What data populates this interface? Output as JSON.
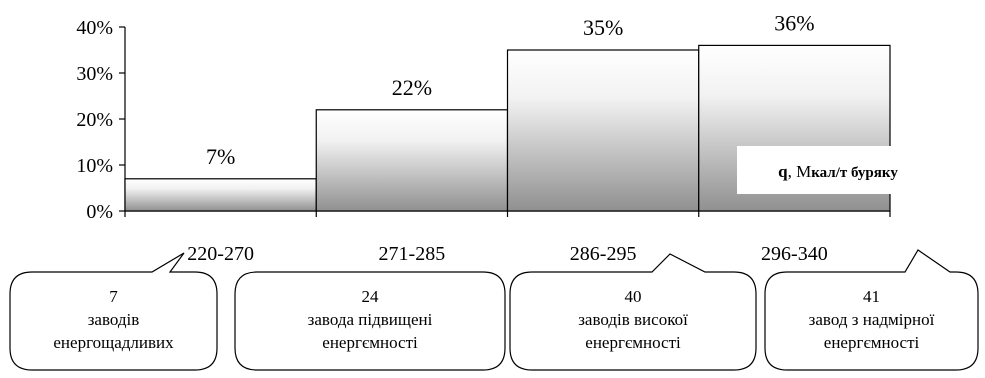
{
  "chart_data": {
    "type": "bar",
    "categories": [
      "220-270",
      "271-285",
      "286-295",
      "296-340"
    ],
    "values": [
      7,
      22,
      35,
      36
    ],
    "data_labels": [
      "7%",
      "22%",
      "35%",
      "36%"
    ],
    "ylim": [
      0,
      40
    ],
    "yticks": [
      0,
      10,
      20,
      30,
      40
    ],
    "ytick_labels": [
      "0%",
      "10%",
      "20%",
      "30%",
      "40%"
    ],
    "grid": false,
    "annotation": {
      "bold": "q",
      "sep": ", ",
      "unit_big": "М",
      "unit_rest": "кал/т буряку"
    },
    "callouts": [
      {
        "count": "7",
        "line1": "заводів",
        "line2": "енергощадливих"
      },
      {
        "count": "24",
        "line1": "завода  підвищені",
        "line2": "енергємності"
      },
      {
        "count": "40",
        "line1": "заводів високої",
        "line2": "енергємності"
      },
      {
        "count": "41",
        "line1": "завод з надмірної",
        "line2": "енергємності"
      }
    ]
  }
}
